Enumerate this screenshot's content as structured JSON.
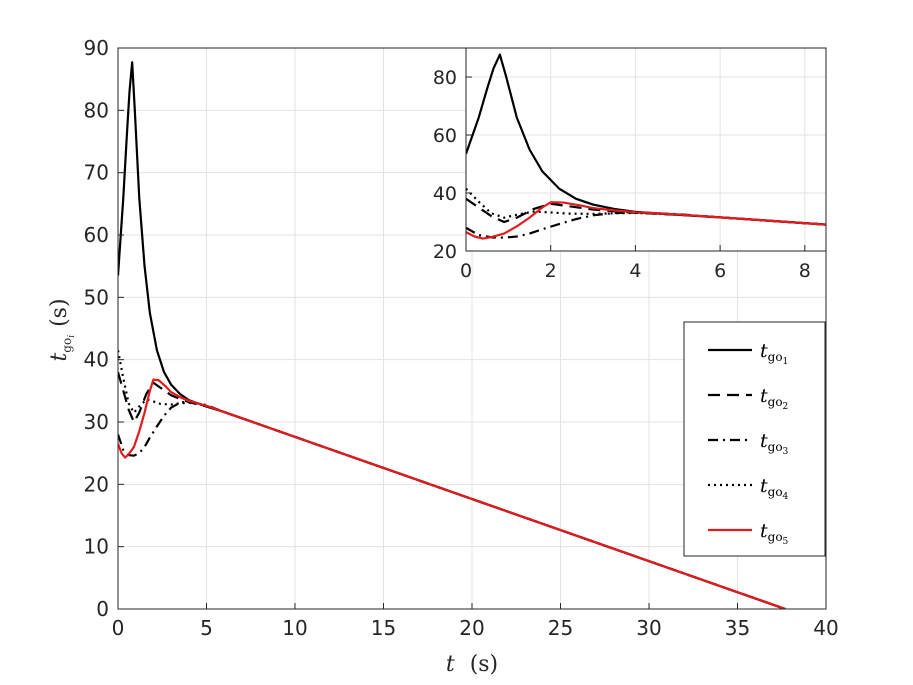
{
  "chart_data": [
    {
      "type": "line",
      "title": "",
      "xlabel": "t (s)",
      "ylabel": "t_go_i (s)",
      "xlim": [
        0,
        40
      ],
      "ylim": [
        0,
        90
      ],
      "xticks": [
        0,
        5,
        10,
        15,
        20,
        25,
        30,
        35,
        40
      ],
      "yticks": [
        0,
        10,
        20,
        30,
        40,
        50,
        60,
        70,
        80,
        90
      ],
      "grid": true,
      "legend": "right",
      "series": [
        {
          "name": "t_go_1",
          "color": "#000000",
          "dash": "solid",
          "x": [
            0,
            0.3,
            0.5,
            0.65,
            0.8,
            0.95,
            1.2,
            1.5,
            1.8,
            2.2,
            2.6,
            3.0,
            3.5,
            4.0,
            5.0,
            6.0,
            37.7
          ],
          "y": [
            53.5,
            66,
            76,
            83,
            87.7,
            80,
            66,
            55,
            47.5,
            41.5,
            38,
            36,
            34.5,
            33.5,
            32.5,
            31.6,
            0
          ]
        },
        {
          "name": "t_go_2",
          "color": "#000000",
          "dash": "dashed",
          "x": [
            0,
            0.3,
            0.6,
            0.9,
            1.2,
            1.6,
            2.0,
            2.4,
            3.0,
            3.5,
            4.0,
            5.0,
            6.0,
            37.7
          ],
          "y": [
            38,
            35,
            32,
            30,
            31.5,
            34.5,
            36.3,
            35.5,
            34.3,
            33.7,
            33.2,
            32.5,
            31.6,
            0
          ]
        },
        {
          "name": "t_go_3",
          "color": "#000000",
          "dash": "dashdot",
          "x": [
            0,
            0.3,
            0.6,
            0.9,
            1.2,
            1.5,
            1.8,
            2.2,
            2.6,
            3.0,
            3.5,
            4.0,
            5.0,
            6.0,
            37.7
          ],
          "y": [
            28,
            25.5,
            24.7,
            24.6,
            25.0,
            26.0,
            27.5,
            29.3,
            31.0,
            32.3,
            33.1,
            33.3,
            32.7,
            31.6,
            0
          ]
        },
        {
          "name": "t_go_4",
          "color": "#000000",
          "dash": "dotted",
          "x": [
            0,
            0.3,
            0.6,
            0.9,
            1.2,
            1.6,
            2.0,
            2.4,
            3.0,
            3.5,
            4.0,
            5.0,
            6.0,
            37.7
          ],
          "y": [
            41.5,
            37,
            33,
            31.5,
            32.5,
            33.6,
            33.3,
            32.9,
            32.8,
            33.0,
            33.1,
            32.6,
            31.6,
            0
          ]
        },
        {
          "name": "t_go_5",
          "color": "#e41a1c",
          "dash": "solid",
          "x": [
            0,
            0.2,
            0.4,
            0.6,
            0.9,
            1.2,
            1.5,
            1.8,
            2.0,
            2.3,
            2.7,
            3.0,
            3.5,
            4.0,
            5.0,
            6.0,
            37.7
          ],
          "y": [
            26.5,
            25.0,
            24.3,
            24.8,
            26.0,
            28.5,
            31.5,
            35.0,
            36.8,
            36.7,
            35.7,
            34.8,
            34.0,
            33.4,
            32.6,
            31.6,
            0
          ]
        }
      ]
    },
    {
      "type": "line",
      "title": "",
      "xlim": [
        0,
        8.5
      ],
      "ylim": [
        20,
        90
      ],
      "xticks": [
        0,
        2,
        4,
        6,
        8
      ],
      "yticks": [
        20,
        40,
        60,
        80
      ],
      "grid": true,
      "note": "zoomed inset of the same five series"
    }
  ],
  "legend": {
    "entries": [
      {
        "main": "t",
        "sub": "go",
        "subsub": "1"
      },
      {
        "main": "t",
        "sub": "go",
        "subsub": "2"
      },
      {
        "main": "t",
        "sub": "go",
        "subsub": "3"
      },
      {
        "main": "t",
        "sub": "go",
        "subsub": "4"
      },
      {
        "main": "t",
        "sub": "go",
        "subsub": "5"
      }
    ]
  },
  "axis_titles": {
    "x_main": "t",
    "x_unit": "(s)",
    "y_main": "t",
    "y_sub": "go",
    "y_subsub": "i",
    "y_unit": "(s)"
  }
}
